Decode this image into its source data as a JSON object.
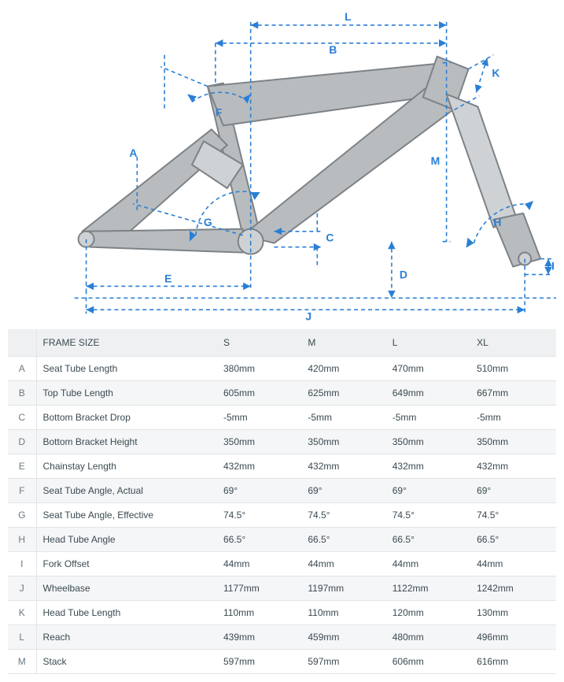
{
  "diagram": {
    "frame_fill": "#b8bcbf",
    "frame_stroke": "#7d8286",
    "fork_upper_fill": "#cfd2d4",
    "guide_color": "#2a7fd4",
    "label_color": "#2a7fd4",
    "background": "#ffffff",
    "label_fontsize": 14,
    "label_fontweight": 700,
    "dash": "5,4",
    "labels": {
      "A": "A",
      "B": "B",
      "C": "C",
      "D": "D",
      "E": "E",
      "F": "F",
      "G": "G",
      "H": "H",
      "I": "I",
      "J": "J",
      "K": "K",
      "L": "L",
      "M": "M"
    }
  },
  "table": {
    "header_label": "FRAME SIZE",
    "sizes": [
      "S",
      "M",
      "L",
      "XL"
    ],
    "rows": [
      {
        "key": "A",
        "label": "Seat Tube Length",
        "values": [
          "380mm",
          "420mm",
          "470mm",
          "510mm"
        ]
      },
      {
        "key": "B",
        "label": "Top Tube Length",
        "values": [
          "605mm",
          "625mm",
          "649mm",
          "667mm"
        ]
      },
      {
        "key": "C",
        "label": "Bottom Bracket Drop",
        "values": [
          "-5mm",
          "-5mm",
          "-5mm",
          "-5mm"
        ]
      },
      {
        "key": "D",
        "label": "Bottom Bracket Height",
        "values": [
          "350mm",
          "350mm",
          "350mm",
          "350mm"
        ]
      },
      {
        "key": "E",
        "label": "Chainstay Length",
        "values": [
          "432mm",
          "432mm",
          "432mm",
          "432mm"
        ]
      },
      {
        "key": "F",
        "label": "Seat Tube Angle, Actual",
        "values": [
          "69°",
          "69°",
          "69°",
          "69°"
        ]
      },
      {
        "key": "G",
        "label": "Seat Tube Angle, Effective",
        "values": [
          "74.5°",
          "74.5°",
          "74.5°",
          "74.5°"
        ]
      },
      {
        "key": "H",
        "label": "Head Tube Angle",
        "values": [
          "66.5°",
          "66.5°",
          "66.5°",
          "66.5°"
        ]
      },
      {
        "key": "I",
        "label": "Fork Offset",
        "values": [
          "44mm",
          "44mm",
          "44mm",
          "44mm"
        ]
      },
      {
        "key": "J",
        "label": "Wheelbase",
        "values": [
          "1177mm",
          "1197mm",
          "1122mm",
          "1242mm"
        ]
      },
      {
        "key": "K",
        "label": "Head Tube Length",
        "values": [
          "110mm",
          "110mm",
          "120mm",
          "130mm"
        ]
      },
      {
        "key": "L",
        "label": "Reach",
        "values": [
          "439mm",
          "459mm",
          "480mm",
          "496mm"
        ]
      },
      {
        "key": "M",
        "label": "Stack",
        "values": [
          "597mm",
          "597mm",
          "606mm",
          "616mm"
        ]
      }
    ],
    "header_bg": "#eef0f1",
    "row_even_bg": "#f5f6f7",
    "row_odd_bg": "#ffffff",
    "border_color": "#e2e4e5",
    "text_color": "#3a4a52",
    "fontsize": 12
  }
}
